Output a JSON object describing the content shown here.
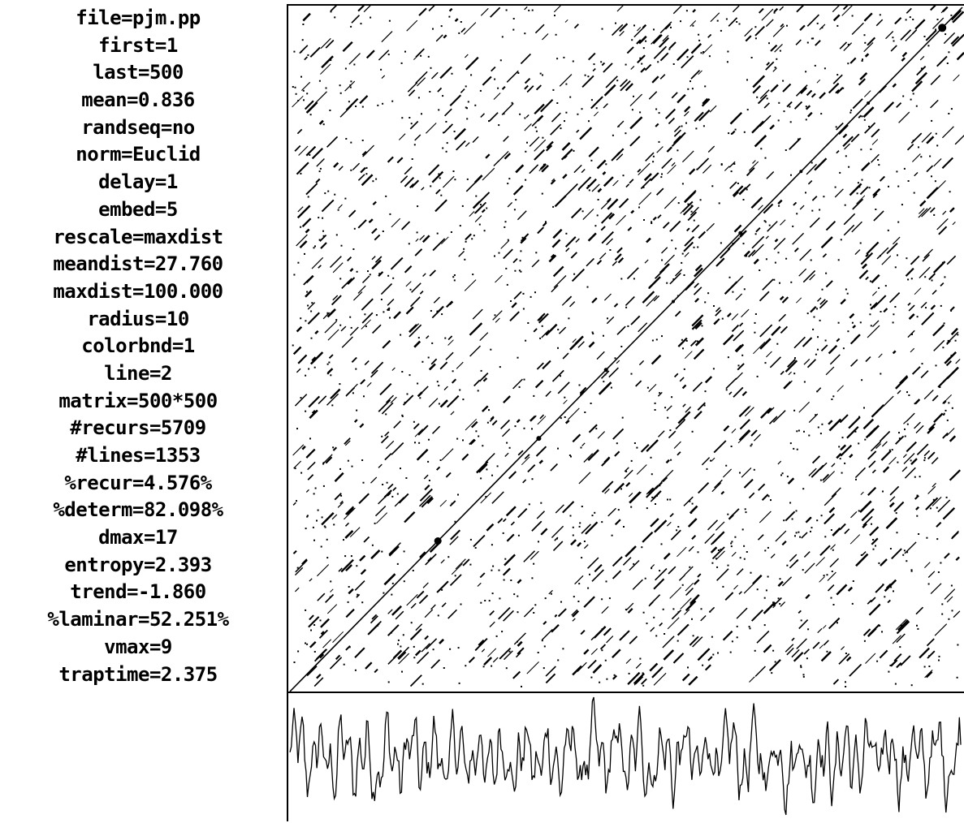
{
  "params": [
    {
      "key": "file",
      "value": "pjm.pp"
    },
    {
      "key": "first",
      "value": "1"
    },
    {
      "key": "last",
      "value": "500"
    },
    {
      "key": "mean",
      "value": "0.836"
    },
    {
      "key": "randseq",
      "value": "no"
    },
    {
      "key": "norm",
      "value": "Euclid"
    },
    {
      "key": "delay",
      "value": "1"
    },
    {
      "key": "embed",
      "value": "5"
    },
    {
      "key": "rescale",
      "value": "maxdist"
    },
    {
      "key": "meandist",
      "value": "27.760"
    },
    {
      "key": "maxdist",
      "value": "100.000"
    },
    {
      "key": "radius",
      "value": "10"
    },
    {
      "key": "colorbnd",
      "value": "1"
    },
    {
      "key": "line",
      "value": "2"
    },
    {
      "key": "matrix",
      "value": "500*500"
    },
    {
      "key": "#recurs",
      "value": "5709"
    },
    {
      "key": "#lines",
      "value": "1353"
    },
    {
      "key": "%recur",
      "value": "4.576%"
    },
    {
      "key": "%determ",
      "value": "82.098%"
    },
    {
      "key": "dmax",
      "value": "17"
    },
    {
      "key": "entropy",
      "value": "2.393"
    },
    {
      "key": "trend",
      "value": "-1.860"
    },
    {
      "key": "%laminar",
      "value": "52.251%"
    },
    {
      "key": "vmax",
      "value": "9"
    },
    {
      "key": "traptime",
      "value": "2.375"
    }
  ],
  "plot": {
    "matrix_size": 500,
    "main_diagonal": true,
    "line_color": "#000000",
    "background_color": "#ffffff"
  }
}
